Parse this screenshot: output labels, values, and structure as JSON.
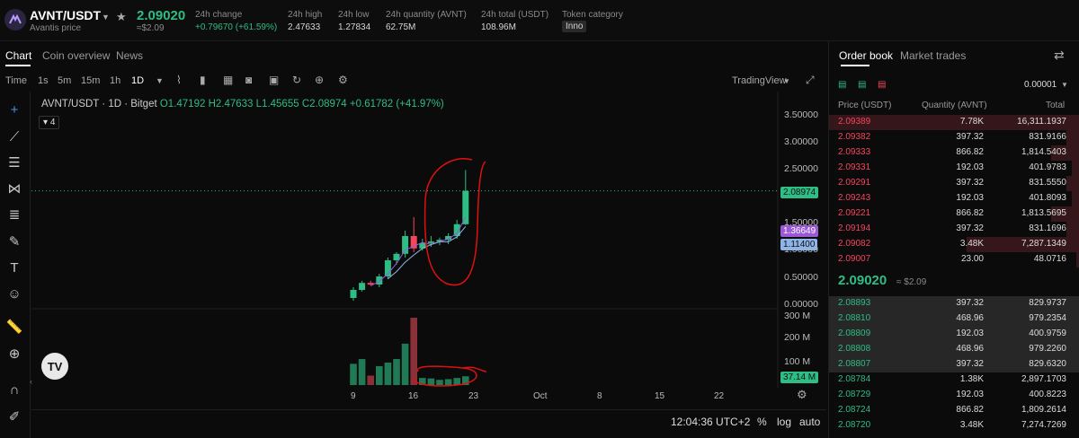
{
  "header": {
    "pair": "AVNT/USDT",
    "subtitle": "Avantis price",
    "last_price": "2.09020",
    "last_price_usd": "≈$2.09",
    "stats": [
      {
        "label": "24h change",
        "value": "+0.79670 (+61.59%)"
      },
      {
        "label": "24h high",
        "value": "2.47633"
      },
      {
        "label": "24h low",
        "value": "1.27834"
      },
      {
        "label": "24h quantity (AVNT)",
        "value": "62.75M"
      },
      {
        "label": "24h total (USDT)",
        "value": "108.96M"
      },
      {
        "label": "Token category",
        "value": "Inno"
      }
    ]
  },
  "tabs": [
    "Chart",
    "Coin overview",
    "News"
  ],
  "toolbar": {
    "time_label": "Time",
    "intervals": [
      "1s",
      "5m",
      "15m",
      "1h",
      "1D"
    ],
    "active_interval": "1D",
    "view_label": "TradingView"
  },
  "legend": {
    "symbol": "AVNT/USDT · 1D · Bitget",
    "open": "O1.47192",
    "high": "H2.47633",
    "low": "L1.45655",
    "close": "C2.08974",
    "change": "+0.61782 (+41.97%)",
    "indicator_count": "4"
  },
  "price_axis": [
    "3.50000",
    "3.00000",
    "2.50000",
    "2.00000",
    "1.50000",
    "1.00000",
    "0.50000",
    "0.00000"
  ],
  "volume_axis": [
    "300 M",
    "200 M",
    "100 M"
  ],
  "price_labels": {
    "last": "2.08974",
    "ma1": "1.36649",
    "ma2": "1.11400",
    "volume": "37.14 M"
  },
  "x_axis": [
    "9",
    "16",
    "23",
    "Oct",
    "8",
    "15",
    "22"
  ],
  "bottom_bar": {
    "time": "12:04:36 UTC+2",
    "percent": "%",
    "log": "log",
    "auto": "auto"
  },
  "order_book": {
    "tabs": [
      "Order book",
      "Market trades"
    ],
    "precision": "0.00001",
    "headers": [
      "Price (USDT)",
      "Quantity (AVNT)",
      "Total"
    ],
    "asks": [
      {
        "price": "2.09389",
        "qty": "7.78K",
        "total": "16,311.1937",
        "depth": 1.0
      },
      {
        "price": "2.09382",
        "qty": "397.32",
        "total": "831.9166",
        "depth": 0.05
      },
      {
        "price": "2.09333",
        "qty": "866.82",
        "total": "1,814.5403",
        "depth": 0.11
      },
      {
        "price": "2.09331",
        "qty": "192.03",
        "total": "401.9783",
        "depth": 0.03
      },
      {
        "price": "2.09291",
        "qty": "397.32",
        "total": "831.5550",
        "depth": 0.05
      },
      {
        "price": "2.09243",
        "qty": "192.03",
        "total": "401.8093",
        "depth": 0.03
      },
      {
        "price": "2.09221",
        "qty": "866.82",
        "total": "1,813.5695",
        "depth": 0.11
      },
      {
        "price": "2.09194",
        "qty": "397.32",
        "total": "831.1696",
        "depth": 0.05
      },
      {
        "price": "2.09082",
        "qty": "3.48K",
        "total": "7,287.1349",
        "depth": 0.45
      },
      {
        "price": "2.09007",
        "qty": "23.00",
        "total": "48.0716",
        "depth": 0.01
      }
    ],
    "mid_price": "2.09020",
    "mid_usd": "≈ $2.09",
    "bids": [
      {
        "price": "2.08893",
        "qty": "397.32",
        "total": "829.9737",
        "depth": 1.0
      },
      {
        "price": "2.08810",
        "qty": "468.96",
        "total": "979.2354",
        "depth": 1.0
      },
      {
        "price": "2.08809",
        "qty": "192.03",
        "total": "400.9759",
        "depth": 1.0
      },
      {
        "price": "2.08808",
        "qty": "468.96",
        "total": "979.2260",
        "depth": 1.0
      },
      {
        "price": "2.08807",
        "qty": "397.32",
        "total": "829.6320",
        "depth": 1.0
      },
      {
        "price": "2.08784",
        "qty": "1.38K",
        "total": "2,897.1703",
        "depth": 0.0
      },
      {
        "price": "2.08729",
        "qty": "192.03",
        "total": "400.8223",
        "depth": 0.0
      },
      {
        "price": "2.08724",
        "qty": "866.82",
        "total": "1,809.2614",
        "depth": 0.0
      },
      {
        "price": "2.08720",
        "qty": "3.48K",
        "total": "7,274.7269",
        "depth": 0.0
      }
    ]
  },
  "colors": {
    "up": "#2ebd85",
    "down": "#f6465d",
    "annotation": "#e01010",
    "ma1": "#9b59d6",
    "ma2": "#8fb4e8"
  },
  "chart_data": {
    "type": "candlestick",
    "title": "AVNT/USDT · 1D · Bitget",
    "ylim": [
      0,
      3.5
    ],
    "candles": [
      {
        "o": 0.1,
        "h": 0.3,
        "l": 0.05,
        "c": 0.25
      },
      {
        "o": 0.25,
        "h": 0.42,
        "l": 0.22,
        "c": 0.38
      },
      {
        "o": 0.38,
        "h": 0.42,
        "l": 0.33,
        "c": 0.35
      },
      {
        "o": 0.35,
        "h": 0.55,
        "l": 0.3,
        "c": 0.5
      },
      {
        "o": 0.5,
        "h": 0.85,
        "l": 0.45,
        "c": 0.8
      },
      {
        "o": 0.8,
        "h": 0.95,
        "l": 0.72,
        "c": 0.92
      },
      {
        "o": 0.92,
        "h": 1.35,
        "l": 0.85,
        "c": 1.25
      },
      {
        "o": 1.25,
        "h": 1.6,
        "l": 0.95,
        "c": 1.02
      },
      {
        "o": 1.02,
        "h": 1.2,
        "l": 0.98,
        "c": 1.12
      },
      {
        "o": 1.12,
        "h": 1.25,
        "l": 1.05,
        "c": 1.15
      },
      {
        "o": 1.15,
        "h": 1.22,
        "l": 1.08,
        "c": 1.18
      },
      {
        "o": 1.18,
        "h": 1.3,
        "l": 1.1,
        "c": 1.25
      },
      {
        "o": 1.25,
        "h": 1.55,
        "l": 1.2,
        "c": 1.47
      },
      {
        "o": 1.47,
        "h": 2.47633,
        "l": 1.45655,
        "c": 2.08974
      }
    ],
    "volume_millions": [
      90,
      110,
      40,
      80,
      95,
      110,
      175,
      285,
      30,
      28,
      22,
      25,
      30,
      37.14
    ],
    "volume_ylim": [
      0,
      300
    ]
  }
}
